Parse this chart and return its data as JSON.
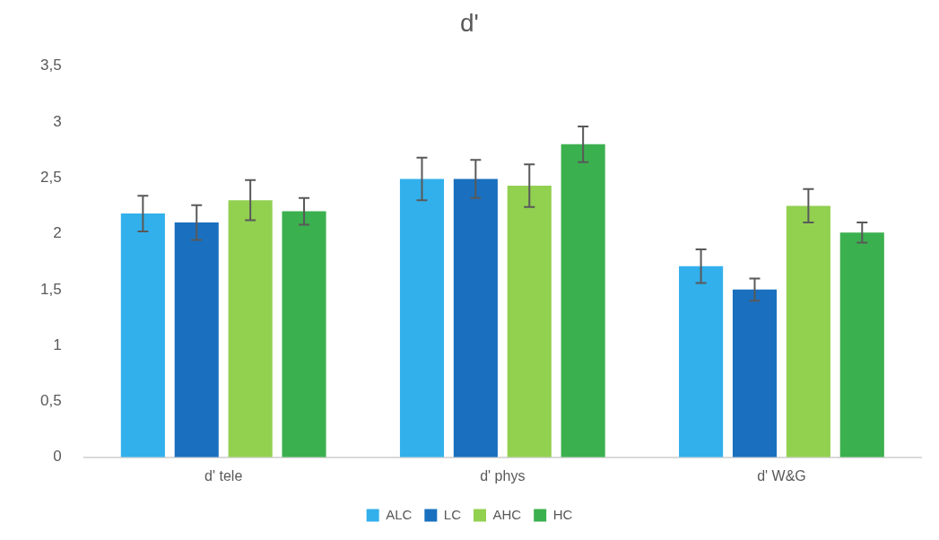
{
  "chart_data": {
    "type": "bar",
    "title": "d'",
    "categories": [
      "d' tele",
      "d' phys",
      "d' W&G"
    ],
    "series": [
      {
        "name": "ALC",
        "color": "#32b0ec",
        "values": [
          2.18,
          2.49,
          1.71
        ],
        "errors": [
          0.16,
          0.19,
          0.15
        ]
      },
      {
        "name": "LC",
        "color": "#1a70bf",
        "values": [
          2.1,
          2.49,
          1.5
        ],
        "errors": [
          0.155,
          0.17,
          0.1
        ]
      },
      {
        "name": "AHC",
        "color": "#92d050",
        "values": [
          2.3,
          2.43,
          2.25
        ],
        "errors": [
          0.18,
          0.19,
          0.15
        ]
      },
      {
        "name": "HC",
        "color": "#3bb04f",
        "values": [
          2.2,
          2.8,
          2.01
        ],
        "errors": [
          0.12,
          0.16,
          0.09
        ]
      }
    ],
    "ylim": [
      0,
      3.5
    ],
    "yticks": [
      0,
      {
        "value": 0.5,
        "label": "0,5"
      },
      1,
      {
        "value": 1.5,
        "label": "1,5"
      },
      2,
      {
        "value": 2.5,
        "label": "2,5"
      },
      3,
      {
        "value": 3.5,
        "label": "3,5"
      }
    ],
    "grid": false,
    "legend": "bottom"
  }
}
